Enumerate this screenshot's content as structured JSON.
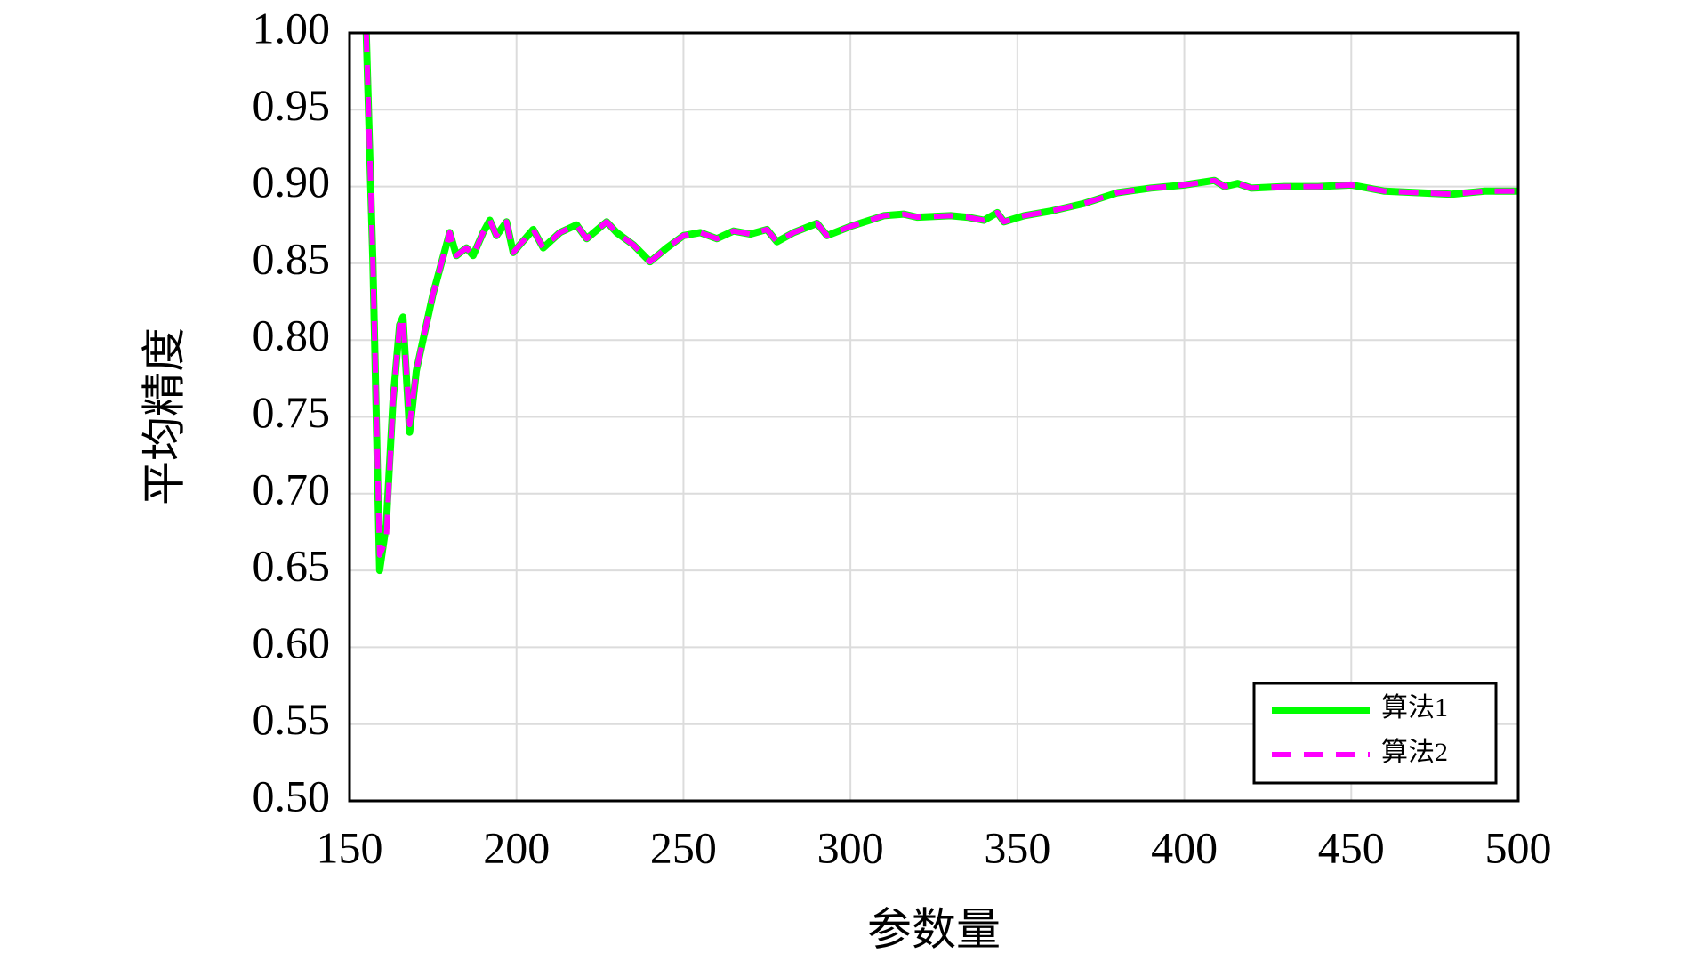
{
  "chart_data": {
    "type": "line",
    "x_label": "参数量",
    "y_label": "平均精度",
    "xlim": [
      150,
      500
    ],
    "xticks": [
      150,
      200,
      250,
      300,
      350,
      400,
      450,
      500
    ],
    "ylim": [
      0.5,
      1.0
    ],
    "yticks": [
      {
        "value": 0.5,
        "label": "0.50"
      },
      {
        "value": 0.55,
        "label": "0.55"
      },
      {
        "value": 0.6,
        "label": "0.60"
      },
      {
        "value": 0.65,
        "label": "0.65"
      },
      {
        "value": 0.7,
        "label": "0.70"
      },
      {
        "value": 0.75,
        "label": "0.75"
      },
      {
        "value": 0.8,
        "label": "0.80"
      },
      {
        "value": 0.85,
        "label": "0.85"
      },
      {
        "value": 0.9,
        "label": "0.90"
      },
      {
        "value": 0.95,
        "label": "0.95"
      },
      {
        "value": 1.0,
        "label": "1.00"
      }
    ],
    "grid": true,
    "legend": "lower right",
    "x": [
      155,
      157,
      159,
      161,
      163,
      165,
      166,
      168,
      170,
      175,
      180,
      182,
      185,
      187,
      190,
      192,
      194,
      197,
      199,
      205,
      208,
      213,
      218,
      221,
      227,
      230,
      235,
      240,
      245,
      250,
      255,
      260,
      265,
      270,
      275,
      278,
      283,
      290,
      293,
      300,
      310,
      316,
      320,
      330,
      335,
      340,
      344,
      346,
      352,
      360,
      370,
      380,
      390,
      400,
      409,
      412,
      416,
      420,
      430,
      440,
      450,
      460,
      470,
      480,
      490,
      500
    ],
    "series": [
      {
        "name": "算法1",
        "color": "#00ff00",
        "style": "solid",
        "values": [
          1.0,
          0.85,
          0.65,
          0.68,
          0.76,
          0.81,
          0.815,
          0.74,
          0.78,
          0.83,
          0.87,
          0.855,
          0.86,
          0.855,
          0.87,
          0.878,
          0.868,
          0.877,
          0.857,
          0.872,
          0.86,
          0.87,
          0.875,
          0.866,
          0.877,
          0.87,
          0.862,
          0.851,
          0.86,
          0.868,
          0.87,
          0.866,
          0.871,
          0.869,
          0.872,
          0.864,
          0.87,
          0.876,
          0.868,
          0.874,
          0.881,
          0.882,
          0.88,
          0.881,
          0.88,
          0.878,
          0.883,
          0.877,
          0.881,
          0.884,
          0.889,
          0.896,
          0.899,
          0.901,
          0.904,
          0.9,
          0.902,
          0.899,
          0.9,
          0.9,
          0.901,
          0.897,
          0.896,
          0.895,
          0.897,
          0.897
        ]
      },
      {
        "name": "算法2",
        "color": "#ff00ff",
        "style": "dashed",
        "values": [
          1.0,
          0.85,
          0.66,
          0.67,
          0.76,
          0.81,
          0.815,
          0.745,
          0.78,
          0.83,
          0.87,
          0.855,
          0.86,
          0.855,
          0.87,
          0.878,
          0.868,
          0.877,
          0.857,
          0.872,
          0.86,
          0.87,
          0.875,
          0.866,
          0.877,
          0.87,
          0.862,
          0.851,
          0.86,
          0.868,
          0.87,
          0.866,
          0.871,
          0.869,
          0.872,
          0.864,
          0.87,
          0.876,
          0.868,
          0.874,
          0.881,
          0.882,
          0.88,
          0.881,
          0.88,
          0.878,
          0.883,
          0.877,
          0.881,
          0.884,
          0.889,
          0.896,
          0.899,
          0.901,
          0.904,
          0.9,
          0.902,
          0.899,
          0.9,
          0.9,
          0.901,
          0.897,
          0.896,
          0.895,
          0.897,
          0.897
        ]
      }
    ]
  }
}
